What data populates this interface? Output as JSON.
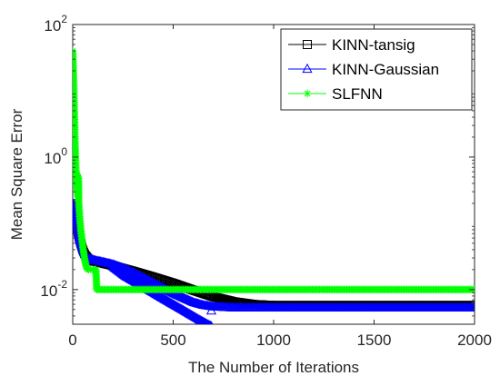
{
  "chart_data": {
    "type": "line",
    "xlabel": "The Number of Iterations",
    "ylabel": "Mean Square Error",
    "xlim": [
      0,
      2000
    ],
    "ylim": [
      0.003,
      100
    ],
    "y_scale": "log",
    "grid": false,
    "legend_position": "top-right",
    "x_ticks": [
      {
        "value": 0,
        "label": "0"
      },
      {
        "value": 500,
        "label": "500"
      },
      {
        "value": 1000,
        "label": "1000"
      },
      {
        "value": 1500,
        "label": "1500"
      },
      {
        "value": 2000,
        "label": "2000"
      }
    ],
    "y_ticks": [
      {
        "value": 0.01,
        "base": "10",
        "exp": "-2"
      },
      {
        "value": 1,
        "base": "10",
        "exp": "0"
      },
      {
        "value": 100,
        "base": "10",
        "exp": "2"
      }
    ],
    "series": [
      {
        "name": "KINN-tansig",
        "color": "#000000",
        "marker": "square",
        "x": [
          0,
          5,
          10,
          20,
          30,
          40,
          50,
          60,
          70,
          80,
          100,
          150,
          200,
          300,
          400,
          500,
          600,
          700,
          800,
          900,
          1000,
          1200,
          1500,
          1800,
          2000
        ],
        "y": [
          0.2,
          0.17,
          0.13,
          0.09,
          0.065,
          0.05,
          0.04,
          0.034,
          0.031,
          0.029,
          0.027,
          0.025,
          0.023,
          0.019,
          0.0155,
          0.0125,
          0.0098,
          0.0078,
          0.0066,
          0.006,
          0.0058,
          0.0058,
          0.0058,
          0.0058,
          0.0058
        ]
      },
      {
        "name": "KINN-Gaussian",
        "color": "#0000ff",
        "marker": "triangle",
        "x": [
          0,
          5,
          10,
          20,
          30,
          40,
          50,
          60,
          70,
          80,
          100,
          150,
          200,
          250,
          300,
          350,
          400,
          450,
          500,
          550,
          600,
          650,
          700,
          750,
          800,
          850,
          900,
          1000,
          1200,
          1500,
          1800,
          2000
        ],
        "y": [
          0.2,
          0.17,
          0.13,
          0.09,
          0.065,
          0.05,
          0.04,
          0.034,
          0.031,
          0.029,
          0.028,
          0.026,
          0.024,
          0.021,
          0.018,
          0.015,
          0.0125,
          0.0105,
          0.0088,
          0.0075,
          0.0064,
          0.0058,
          0.0055,
          0.0054,
          0.0053,
          0.0053,
          0.0053,
          0.0053,
          0.0053,
          0.0053,
          0.0053,
          0.0053
        ]
      },
      {
        "name": "",
        "color": "#0000ff",
        "marker": "triangle",
        "x": [
          200,
          260,
          330,
          400,
          460,
          520,
          580,
          630,
          670,
          690
        ],
        "y": [
          0.022,
          0.016,
          0.012,
          0.009,
          0.007,
          0.0055,
          0.0043,
          0.0035,
          0.003,
          0.0028
        ]
      },
      {
        "name": "SLFNN",
        "color": "#00ff00",
        "marker": "star",
        "x": [
          0,
          2,
          4,
          6,
          8,
          10,
          12,
          14,
          16,
          18,
          20,
          22,
          24,
          26,
          28,
          30,
          35,
          40,
          45,
          50,
          55,
          60,
          65,
          70,
          80,
          90,
          100,
          110,
          115,
          120,
          200,
          400,
          600,
          800,
          1000,
          1200,
          1400,
          1600,
          1800,
          2000
        ],
        "y": [
          40,
          25,
          15,
          8,
          4.5,
          2.5,
          1.4,
          0.9,
          0.6,
          0.45,
          0.35,
          0.55,
          0.3,
          0.25,
          0.5,
          0.2,
          0.12,
          0.08,
          0.06,
          0.045,
          0.035,
          0.028,
          0.024,
          0.021,
          0.02,
          0.02,
          0.02,
          0.02,
          0.02,
          0.01,
          0.01,
          0.01,
          0.01,
          0.01,
          0.01,
          0.01,
          0.01,
          0.01,
          0.01,
          0.01
        ]
      }
    ]
  }
}
